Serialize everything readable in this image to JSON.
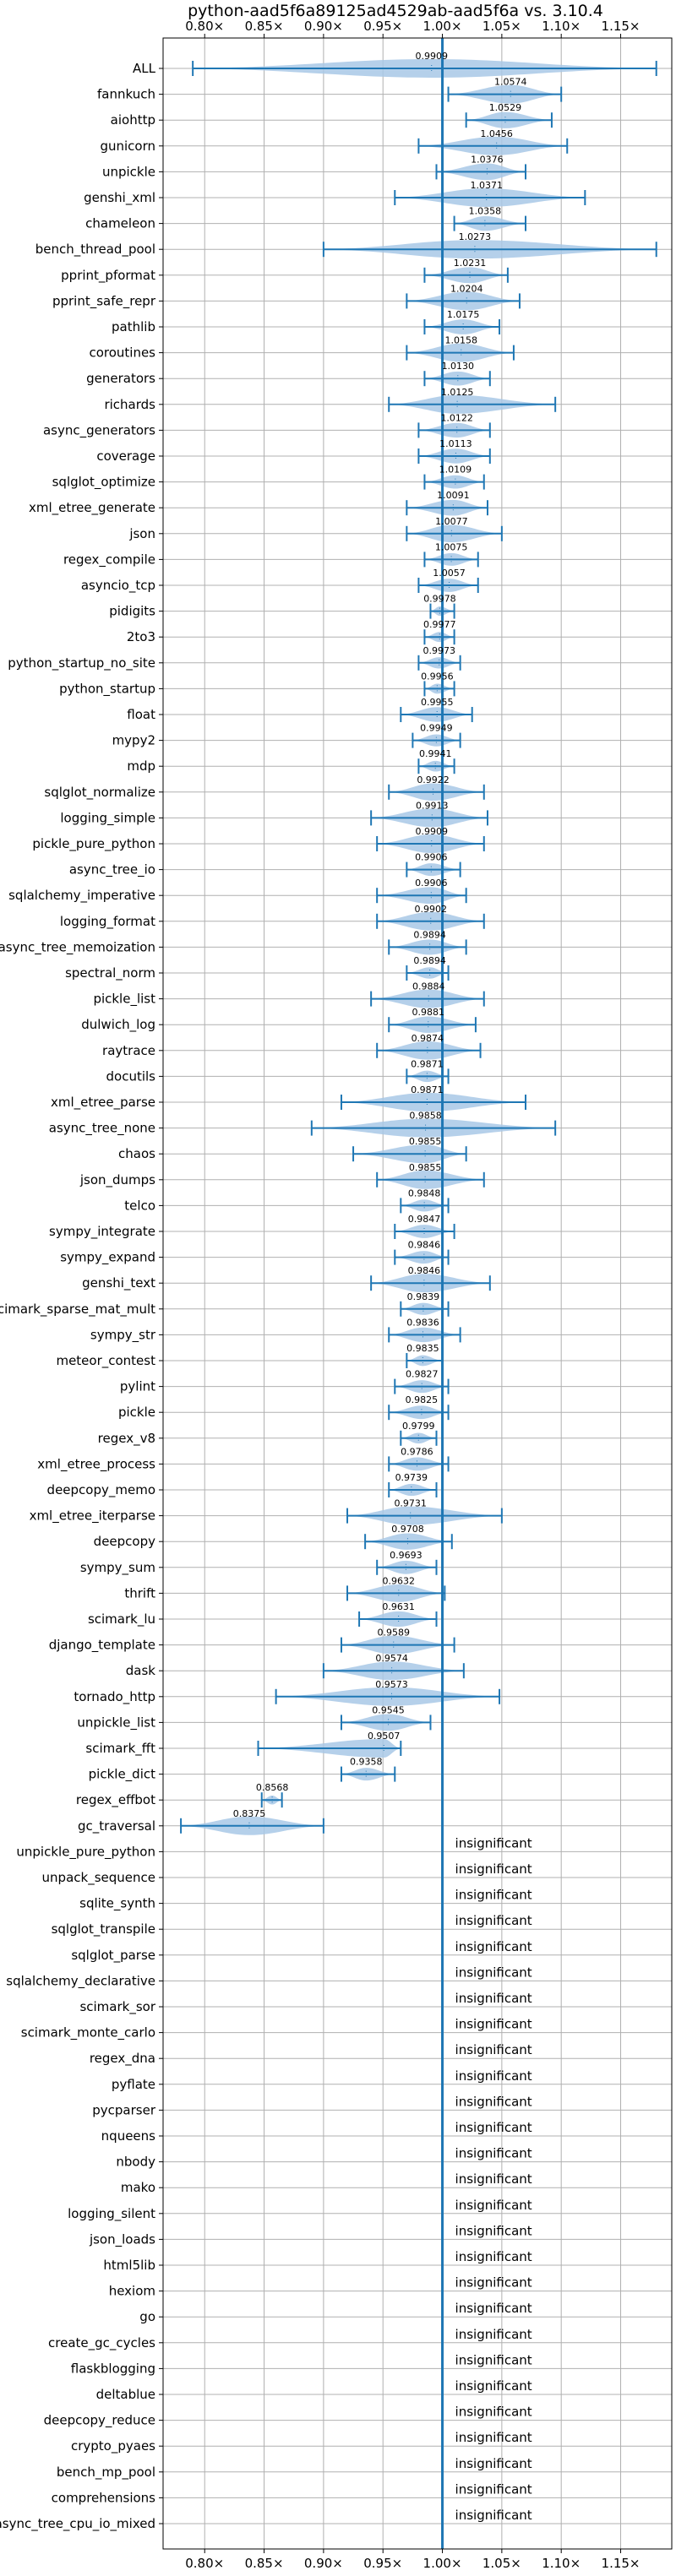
{
  "chart_data": {
    "type": "violin",
    "title": "python-aad5f6a89125ad4529ab-aad5f6a vs. 3.10.4",
    "xlabel": "",
    "ylabel": "",
    "xlim": [
      0.765,
      1.193
    ],
    "x_ticks": [
      0.8,
      0.85,
      0.9,
      0.95,
      1.0,
      1.05,
      1.1,
      1.15
    ],
    "x_tick_labels": [
      "0.80×",
      "0.85×",
      "0.90×",
      "0.95×",
      "1.00×",
      "1.05×",
      "1.10×",
      "1.15×"
    ],
    "x_ticks_top": true,
    "x_ticks_bottom": true,
    "reference_line": 1.0,
    "grid": true,
    "colors": {
      "violin": "#a8c8e6",
      "whisker": "#1f77b4",
      "reference": "#1f77b4",
      "grid": "#b0b0b0"
    },
    "insignificant_label": "insignificant",
    "benchmarks": [
      {
        "name": "ALL",
        "value": 0.9909,
        "label": "0.9909",
        "min": 0.79,
        "max": 1.18
      },
      {
        "name": "fannkuch",
        "value": 1.0574,
        "label": "1.0574",
        "min": 1.005,
        "max": 1.1
      },
      {
        "name": "aiohttp",
        "value": 1.0529,
        "label": "1.0529",
        "min": 1.02,
        "max": 1.092
      },
      {
        "name": "gunicorn",
        "value": 1.0456,
        "label": "1.0456",
        "min": 0.98,
        "max": 1.105
      },
      {
        "name": "unpickle",
        "value": 1.0376,
        "label": "1.0376",
        "min": 0.995,
        "max": 1.07
      },
      {
        "name": "genshi_xml",
        "value": 1.0371,
        "label": "1.0371",
        "min": 0.96,
        "max": 1.12
      },
      {
        "name": "chameleon",
        "value": 1.0358,
        "label": "1.0358",
        "min": 1.01,
        "max": 1.07
      },
      {
        "name": "bench_thread_pool",
        "value": 1.0273,
        "label": "1.0273",
        "min": 0.9,
        "max": 1.18
      },
      {
        "name": "pprint_pformat",
        "value": 1.0231,
        "label": "1.0231",
        "min": 0.985,
        "max": 1.055
      },
      {
        "name": "pprint_safe_repr",
        "value": 1.0204,
        "label": "1.0204",
        "min": 0.97,
        "max": 1.065
      },
      {
        "name": "pathlib",
        "value": 1.0175,
        "label": "1.0175",
        "min": 0.985,
        "max": 1.048
      },
      {
        "name": "coroutines",
        "value": 1.0158,
        "label": "1.0158",
        "min": 0.97,
        "max": 1.06
      },
      {
        "name": "generators",
        "value": 1.013,
        "label": "1.0130",
        "min": 0.985,
        "max": 1.04
      },
      {
        "name": "richards",
        "value": 1.0125,
        "label": "1.0125",
        "min": 0.955,
        "max": 1.095
      },
      {
        "name": "async_generators",
        "value": 1.0122,
        "label": "1.0122",
        "min": 0.98,
        "max": 1.04
      },
      {
        "name": "coverage",
        "value": 1.0113,
        "label": "1.0113",
        "min": 0.98,
        "max": 1.04
      },
      {
        "name": "sqlglot_optimize",
        "value": 1.0109,
        "label": "1.0109",
        "min": 0.985,
        "max": 1.035
      },
      {
        "name": "xml_etree_generate",
        "value": 1.0091,
        "label": "1.0091",
        "min": 0.97,
        "max": 1.038
      },
      {
        "name": "json",
        "value": 1.0077,
        "label": "1.0077",
        "min": 0.97,
        "max": 1.05
      },
      {
        "name": "regex_compile",
        "value": 1.0075,
        "label": "1.0075",
        "min": 0.985,
        "max": 1.03
      },
      {
        "name": "asyncio_tcp",
        "value": 1.0057,
        "label": "1.0057",
        "min": 0.98,
        "max": 1.03
      },
      {
        "name": "pidigits",
        "value": 0.9978,
        "label": "0.9978",
        "min": 0.99,
        "max": 1.01
      },
      {
        "name": "2to3",
        "value": 0.9977,
        "label": "0.9977",
        "min": 0.985,
        "max": 1.01
      },
      {
        "name": "python_startup_no_site",
        "value": 0.9973,
        "label": "0.9973",
        "min": 0.98,
        "max": 1.015
      },
      {
        "name": "python_startup",
        "value": 0.9956,
        "label": "0.9956",
        "min": 0.985,
        "max": 1.01
      },
      {
        "name": "float",
        "value": 0.9955,
        "label": "0.9955",
        "min": 0.965,
        "max": 1.025
      },
      {
        "name": "mypy2",
        "value": 0.9949,
        "label": "0.9949",
        "min": 0.975,
        "max": 1.015
      },
      {
        "name": "mdp",
        "value": 0.9941,
        "label": "0.9941",
        "min": 0.98,
        "max": 1.01
      },
      {
        "name": "sqlglot_normalize",
        "value": 0.9922,
        "label": "0.9922",
        "min": 0.955,
        "max": 1.035
      },
      {
        "name": "logging_simple",
        "value": 0.9913,
        "label": "0.9913",
        "min": 0.94,
        "max": 1.038
      },
      {
        "name": "pickle_pure_python",
        "value": 0.9909,
        "label": "0.9909",
        "min": 0.945,
        "max": 1.035
      },
      {
        "name": "async_tree_io",
        "value": 0.9906,
        "label": "0.9906",
        "min": 0.97,
        "max": 1.015
      },
      {
        "name": "sqlalchemy_imperative",
        "value": 0.9906,
        "label": "0.9906",
        "min": 0.945,
        "max": 1.02
      },
      {
        "name": "logging_format",
        "value": 0.9902,
        "label": "0.9902",
        "min": 0.945,
        "max": 1.035
      },
      {
        "name": "async_tree_memoization",
        "value": 0.9894,
        "label": "0.9894",
        "min": 0.955,
        "max": 1.02
      },
      {
        "name": "spectral_norm",
        "value": 0.9894,
        "label": "0.9894",
        "min": 0.97,
        "max": 1.005
      },
      {
        "name": "pickle_list",
        "value": 0.9884,
        "label": "0.9884",
        "min": 0.94,
        "max": 1.035
      },
      {
        "name": "dulwich_log",
        "value": 0.9881,
        "label": "0.9881",
        "min": 0.955,
        "max": 1.028
      },
      {
        "name": "raytrace",
        "value": 0.9874,
        "label": "0.9874",
        "min": 0.945,
        "max": 1.032
      },
      {
        "name": "docutils",
        "value": 0.9871,
        "label": "0.9871",
        "min": 0.97,
        "max": 1.005
      },
      {
        "name": "xml_etree_parse",
        "value": 0.9871,
        "label": "0.9871",
        "min": 0.915,
        "max": 1.07
      },
      {
        "name": "async_tree_none",
        "value": 0.9858,
        "label": "0.9858",
        "min": 0.89,
        "max": 1.095
      },
      {
        "name": "chaos",
        "value": 0.9855,
        "label": "0.9855",
        "min": 0.925,
        "max": 1.02
      },
      {
        "name": "json_dumps",
        "value": 0.9855,
        "label": "0.9855",
        "min": 0.945,
        "max": 1.035
      },
      {
        "name": "telco",
        "value": 0.9848,
        "label": "0.9848",
        "min": 0.965,
        "max": 1.005
      },
      {
        "name": "sympy_integrate",
        "value": 0.9847,
        "label": "0.9847",
        "min": 0.96,
        "max": 1.01
      },
      {
        "name": "sympy_expand",
        "value": 0.9846,
        "label": "0.9846",
        "min": 0.96,
        "max": 1.005
      },
      {
        "name": "genshi_text",
        "value": 0.9846,
        "label": "0.9846",
        "min": 0.94,
        "max": 1.04
      },
      {
        "name": "scimark_sparse_mat_mult",
        "value": 0.9839,
        "label": "0.9839",
        "min": 0.965,
        "max": 1.005
      },
      {
        "name": "sympy_str",
        "value": 0.9836,
        "label": "0.9836",
        "min": 0.955,
        "max": 1.015
      },
      {
        "name": "meteor_contest",
        "value": 0.9835,
        "label": "0.9835",
        "min": 0.97,
        "max": 1.0
      },
      {
        "name": "pylint",
        "value": 0.9827,
        "label": "0.9827",
        "min": 0.96,
        "max": 1.005
      },
      {
        "name": "pickle",
        "value": 0.9825,
        "label": "0.9825",
        "min": 0.955,
        "max": 1.005
      },
      {
        "name": "regex_v8",
        "value": 0.9799,
        "label": "0.9799",
        "min": 0.965,
        "max": 0.995
      },
      {
        "name": "xml_etree_process",
        "value": 0.9786,
        "label": "0.9786",
        "min": 0.955,
        "max": 1.005
      },
      {
        "name": "deepcopy_memo",
        "value": 0.9739,
        "label": "0.9739",
        "min": 0.955,
        "max": 0.995
      },
      {
        "name": "xml_etree_iterparse",
        "value": 0.9731,
        "label": "0.9731",
        "min": 0.92,
        "max": 1.05
      },
      {
        "name": "deepcopy",
        "value": 0.9708,
        "label": "0.9708",
        "min": 0.935,
        "max": 1.008
      },
      {
        "name": "sympy_sum",
        "value": 0.9693,
        "label": "0.9693",
        "min": 0.945,
        "max": 0.995
      },
      {
        "name": "thrift",
        "value": 0.9632,
        "label": "0.9632",
        "min": 0.92,
        "max": 1.002
      },
      {
        "name": "scimark_lu",
        "value": 0.9631,
        "label": "0.9631",
        "min": 0.93,
        "max": 0.995
      },
      {
        "name": "django_template",
        "value": 0.9589,
        "label": "0.9589",
        "min": 0.915,
        "max": 1.01
      },
      {
        "name": "dask",
        "value": 0.9574,
        "label": "0.9574",
        "min": 0.9,
        "max": 1.018
      },
      {
        "name": "tornado_http",
        "value": 0.9573,
        "label": "0.9573",
        "min": 0.86,
        "max": 1.048
      },
      {
        "name": "unpickle_list",
        "value": 0.9545,
        "label": "0.9545",
        "min": 0.915,
        "max": 0.99
      },
      {
        "name": "scimark_fft",
        "value": 0.9507,
        "label": "0.9507",
        "min": 0.845,
        "max": 0.965
      },
      {
        "name": "pickle_dict",
        "value": 0.9358,
        "label": "0.9358",
        "min": 0.915,
        "max": 0.96
      },
      {
        "name": "regex_effbot",
        "value": 0.8568,
        "label": "0.8568",
        "min": 0.848,
        "max": 0.865
      },
      {
        "name": "gc_traversal",
        "value": 0.8375,
        "label": "0.8375",
        "min": 0.78,
        "max": 0.9
      },
      {
        "name": "unpickle_pure_python",
        "value": null,
        "label": "",
        "min": null,
        "max": null
      },
      {
        "name": "unpack_sequence",
        "value": null,
        "label": "",
        "min": null,
        "max": null
      },
      {
        "name": "sqlite_synth",
        "value": null,
        "label": "",
        "min": null,
        "max": null
      },
      {
        "name": "sqlglot_transpile",
        "value": null,
        "label": "",
        "min": null,
        "max": null
      },
      {
        "name": "sqlglot_parse",
        "value": null,
        "label": "",
        "min": null,
        "max": null
      },
      {
        "name": "sqlalchemy_declarative",
        "value": null,
        "label": "",
        "min": null,
        "max": null
      },
      {
        "name": "scimark_sor",
        "value": null,
        "label": "",
        "min": null,
        "max": null
      },
      {
        "name": "scimark_monte_carlo",
        "value": null,
        "label": "",
        "min": null,
        "max": null
      },
      {
        "name": "regex_dna",
        "value": null,
        "label": "",
        "min": null,
        "max": null
      },
      {
        "name": "pyflate",
        "value": null,
        "label": "",
        "min": null,
        "max": null
      },
      {
        "name": "pycparser",
        "value": null,
        "label": "",
        "min": null,
        "max": null
      },
      {
        "name": "nqueens",
        "value": null,
        "label": "",
        "min": null,
        "max": null
      },
      {
        "name": "nbody",
        "value": null,
        "label": "",
        "min": null,
        "max": null
      },
      {
        "name": "mako",
        "value": null,
        "label": "",
        "min": null,
        "max": null
      },
      {
        "name": "logging_silent",
        "value": null,
        "label": "",
        "min": null,
        "max": null
      },
      {
        "name": "json_loads",
        "value": null,
        "label": "",
        "min": null,
        "max": null
      },
      {
        "name": "html5lib",
        "value": null,
        "label": "",
        "min": null,
        "max": null
      },
      {
        "name": "hexiom",
        "value": null,
        "label": "",
        "min": null,
        "max": null
      },
      {
        "name": "go",
        "value": null,
        "label": "",
        "min": null,
        "max": null
      },
      {
        "name": "create_gc_cycles",
        "value": null,
        "label": "",
        "min": null,
        "max": null
      },
      {
        "name": "flaskblogging",
        "value": null,
        "label": "",
        "min": null,
        "max": null
      },
      {
        "name": "deltablue",
        "value": null,
        "label": "",
        "min": null,
        "max": null
      },
      {
        "name": "deepcopy_reduce",
        "value": null,
        "label": "",
        "min": null,
        "max": null
      },
      {
        "name": "crypto_pyaes",
        "value": null,
        "label": "",
        "min": null,
        "max": null
      },
      {
        "name": "bench_mp_pool",
        "value": null,
        "label": "",
        "min": null,
        "max": null
      },
      {
        "name": "comprehensions",
        "value": null,
        "label": "",
        "min": null,
        "max": null
      },
      {
        "name": "async_tree_cpu_io_mixed",
        "value": null,
        "label": "",
        "min": null,
        "max": null
      }
    ]
  }
}
